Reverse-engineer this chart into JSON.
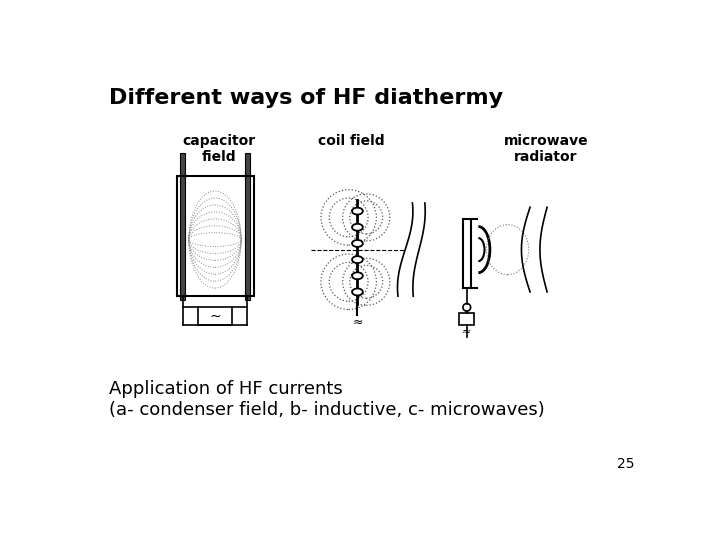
{
  "title": "Different ways of HF diathermy",
  "subtitle1": "Application of HF currents",
  "subtitle2": "(a- condenser field, b- inductive, c- microwaves)",
  "page_num": "25",
  "bg_color": "#ffffff",
  "title_fontsize": 16,
  "subtitle_fontsize": 13,
  "label1": "capacitor\nfield",
  "label2": "coil field",
  "label3": "microwave\nradiator",
  "label_fontsize": 10
}
